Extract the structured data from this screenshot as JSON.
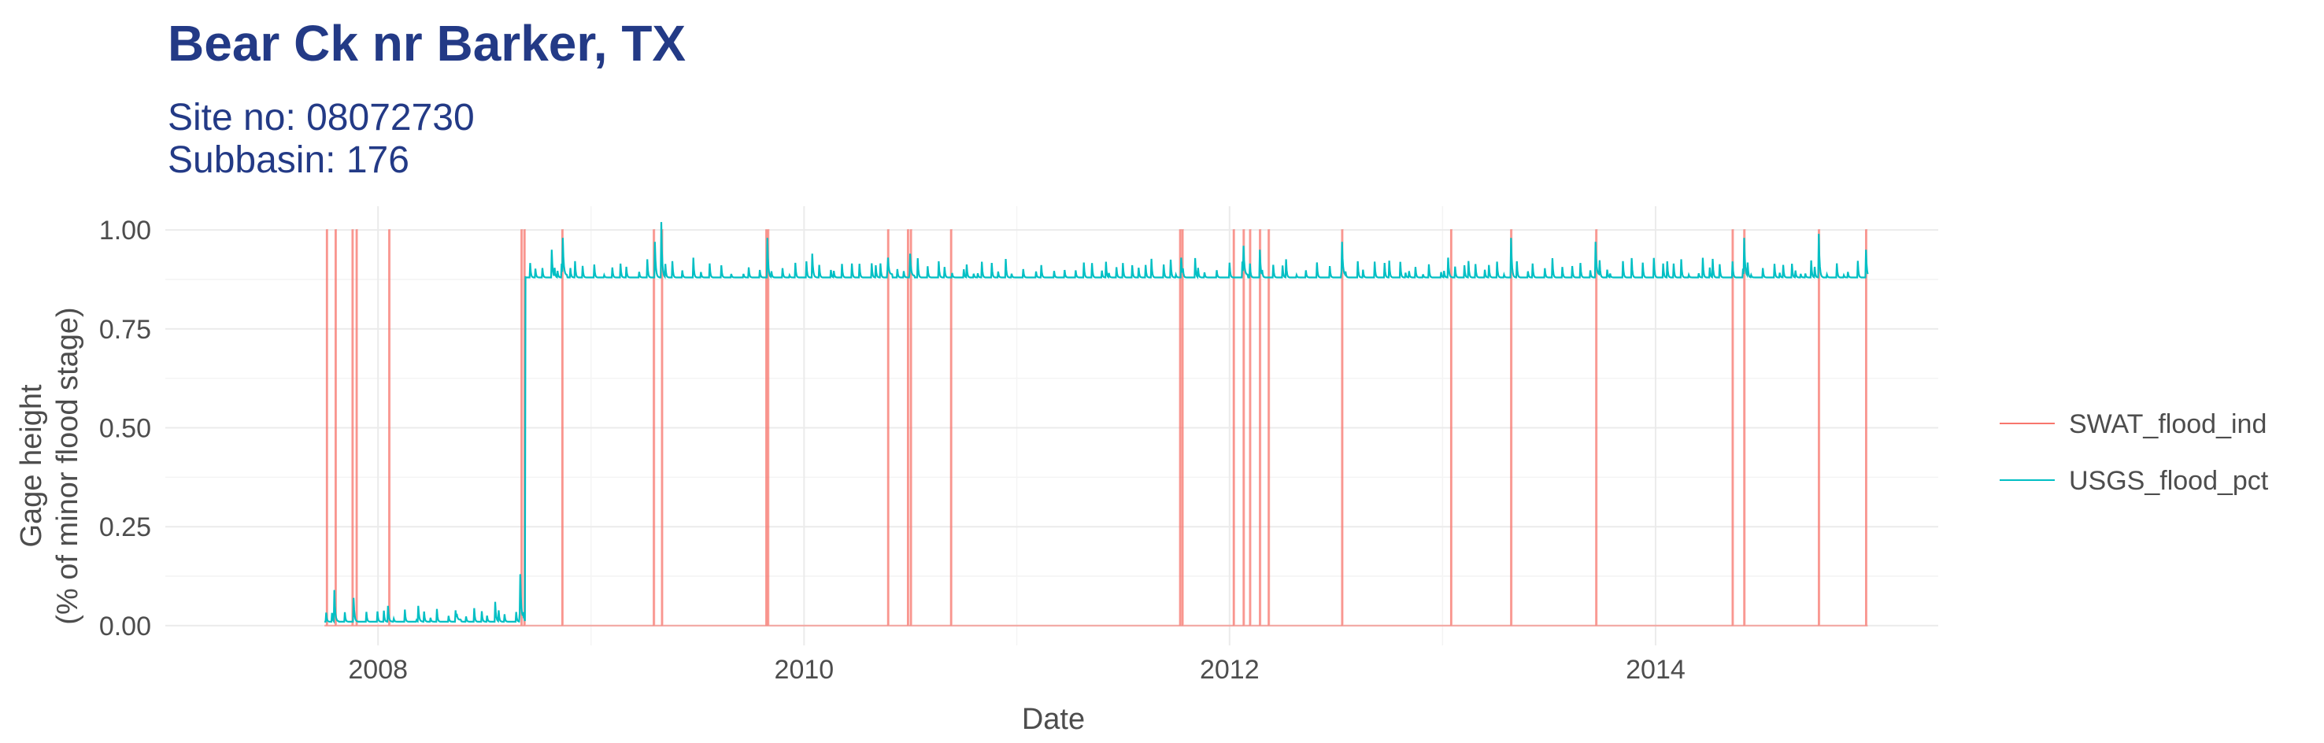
{
  "title": "Bear Ck nr Barker, TX",
  "subtitle_line1": "Site no: 08072730",
  "subtitle_line2": "Subbasin: 176",
  "colors": {
    "title": "#233a86",
    "swat": "#f8766d",
    "usgs": "#00bfc4"
  },
  "chart_data": {
    "type": "line",
    "xlabel": "Date",
    "ylabel_line1": "Gage height",
    "ylabel_line2": "(% of minor flood stage)",
    "xlim": [
      "2007-01-01",
      "2015-05-01"
    ],
    "ylim": [
      -0.05,
      1.06
    ],
    "x_ticks": [
      {
        "date": "2008-01-01",
        "label": "2008"
      },
      {
        "date": "2010-01-01",
        "label": "2010"
      },
      {
        "date": "2012-01-01",
        "label": "2012"
      },
      {
        "date": "2014-01-01",
        "label": "2014"
      }
    ],
    "y_ticks": [
      {
        "value": 0.0,
        "label": "0.00"
      },
      {
        "value": 0.25,
        "label": "0.25"
      },
      {
        "value": 0.5,
        "label": "0.50"
      },
      {
        "value": 0.75,
        "label": "0.75"
      },
      {
        "value": 1.0,
        "label": "1.00"
      }
    ],
    "grid": true,
    "legend_position": "right",
    "series": [
      {
        "name": "SWAT_flood_ind",
        "color": "#f8766d",
        "style": "indicator",
        "flood_dates": [
          "2007-10-05",
          "2007-10-20",
          "2007-11-18",
          "2007-11-25",
          "2008-01-20",
          "2008-09-03",
          "2008-09-08",
          "2008-11-12",
          "2009-04-18",
          "2009-05-02",
          "2009-10-28",
          "2009-10-31",
          "2010-05-25",
          "2010-06-28",
          "2010-07-03",
          "2010-09-10",
          "2011-10-08",
          "2011-10-12",
          "2012-01-08",
          "2012-01-25",
          "2012-02-05",
          "2012-02-22",
          "2012-03-08",
          "2012-07-12",
          "2013-01-15",
          "2013-04-28",
          "2013-09-21",
          "2014-05-13",
          "2014-06-02",
          "2014-10-08",
          "2014-12-28"
        ]
      },
      {
        "name": "USGS_flood_pct",
        "color": "#00bfc4",
        "style": "hydrograph",
        "start": "2007-10-01",
        "end": "2014-12-31",
        "shift_date": "2008-09-10",
        "baseline_before": 0.01,
        "baseline_after": 0.88,
        "peaks": [
          {
            "date": "2007-10-18",
            "value": 0.09
          },
          {
            "date": "2007-11-20",
            "value": 0.07
          },
          {
            "date": "2008-01-18",
            "value": 0.05
          },
          {
            "date": "2008-03-10",
            "value": 0.05
          },
          {
            "date": "2008-05-15",
            "value": 0.03
          },
          {
            "date": "2008-07-20",
            "value": 0.06
          },
          {
            "date": "2008-09-01",
            "value": 0.13
          },
          {
            "date": "2008-10-25",
            "value": 0.95
          },
          {
            "date": "2008-11-13",
            "value": 0.98
          },
          {
            "date": "2009-04-20",
            "value": 0.97
          },
          {
            "date": "2009-05-01",
            "value": 1.02
          },
          {
            "date": "2009-10-30",
            "value": 0.98
          },
          {
            "date": "2010-01-15",
            "value": 0.94
          },
          {
            "date": "2010-05-25",
            "value": 0.93
          },
          {
            "date": "2010-07-02",
            "value": 0.94
          },
          {
            "date": "2011-10-10",
            "value": 0.93
          },
          {
            "date": "2012-01-25",
            "value": 0.96
          },
          {
            "date": "2012-02-22",
            "value": 0.95
          },
          {
            "date": "2012-07-12",
            "value": 0.97
          },
          {
            "date": "2013-01-10",
            "value": 0.93
          },
          {
            "date": "2013-04-28",
            "value": 0.98
          },
          {
            "date": "2013-09-20",
            "value": 0.97
          },
          {
            "date": "2014-06-02",
            "value": 0.98
          },
          {
            "date": "2014-10-08",
            "value": 0.99
          },
          {
            "date": "2014-12-28",
            "value": 0.95
          }
        ]
      }
    ]
  }
}
